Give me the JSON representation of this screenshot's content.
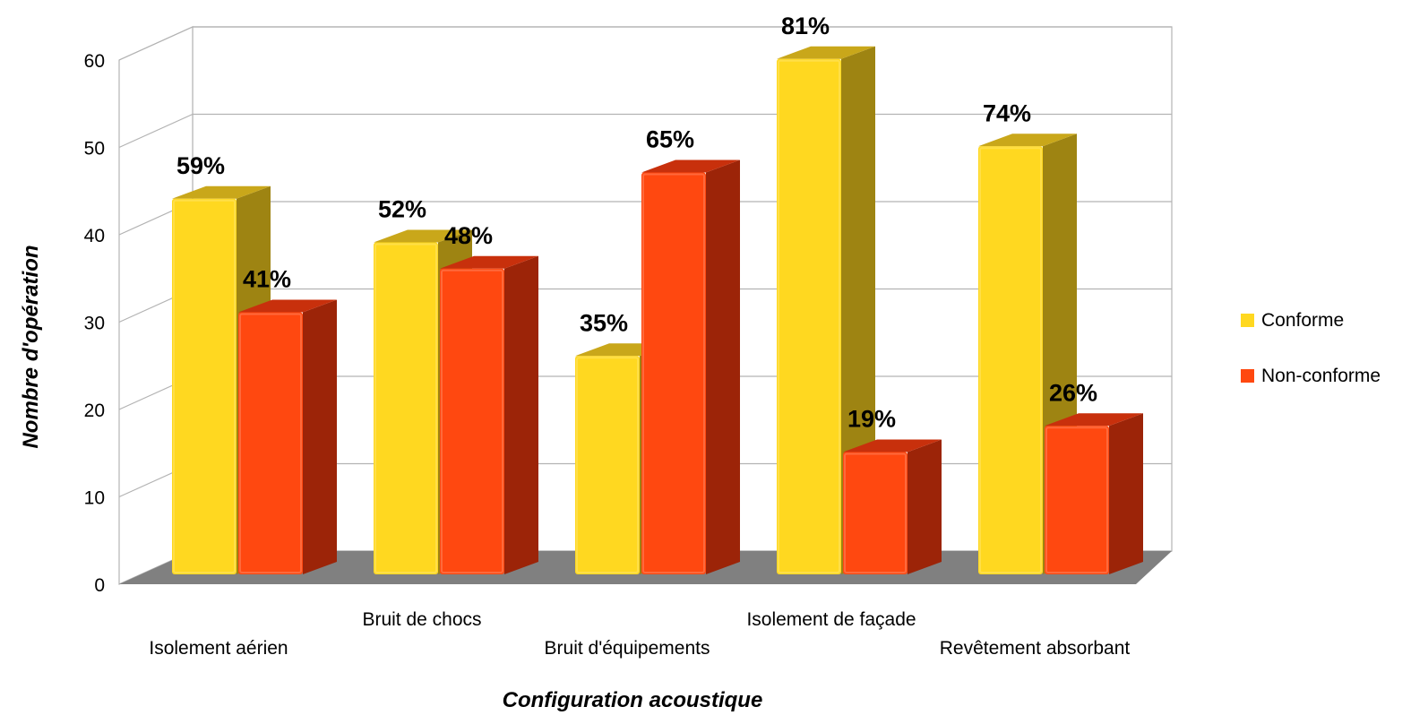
{
  "chart_data": {
    "type": "bar",
    "style": "3d-clustered",
    "categories": [
      "Isolement aérien",
      "Bruit de chocs",
      "Bruit d'équipements",
      "Isolement de façade",
      "Revêtement absorbant"
    ],
    "series": [
      {
        "name": "Conforme",
        "values": [
          43,
          38,
          25,
          59,
          49
        ],
        "labels": [
          "59%",
          "52%",
          "35%",
          "81%",
          "74%"
        ],
        "color": "#FFD820",
        "side_color": "#9E8412",
        "top_color": "#C9A71A"
      },
      {
        "name": "Non-conforme",
        "values": [
          30,
          35,
          46,
          14,
          17
        ],
        "labels": [
          "41%",
          "48%",
          "65%",
          "19%",
          "26%"
        ],
        "color": "#FF4810",
        "side_color": "#9C2408",
        "top_color": "#C8300C"
      }
    ],
    "xlabel": "Configuration acoustique",
    "ylabel": "Nombre d'opération",
    "ylim": [
      0,
      60
    ],
    "yticks": [
      "0",
      "10",
      "20",
      "30",
      "40",
      "50",
      "60"
    ],
    "grid": true,
    "legend": "right",
    "floor_color": "#808080"
  }
}
